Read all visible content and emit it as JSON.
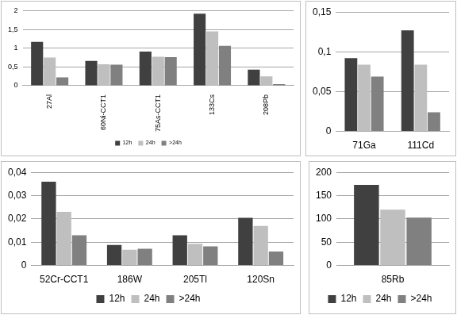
{
  "chart_data": [
    {
      "type": "bar",
      "categories": [
        "27Al",
        "60Ni-CCT1",
        "75As-CCT1",
        "133Cs",
        "208Pb"
      ],
      "series": [
        {
          "name": "12h",
          "color": "#404040",
          "values": [
            1.17,
            0.66,
            0.91,
            1.92,
            0.43
          ]
        },
        {
          "name": "24h",
          "color": "#bfbfbf",
          "values": [
            0.75,
            0.57,
            0.77,
            1.45,
            0.25
          ]
        },
        {
          "name": ">24h",
          "color": "#808080",
          "values": [
            0.22,
            0.56,
            0.76,
            1.06,
            0.04
          ]
        }
      ],
      "ylim": [
        0,
        2
      ],
      "yticks": [
        0,
        {
          "value": 0.5,
          "label": "0,5"
        },
        1,
        {
          "value": 1.5,
          "label": "1,5"
        },
        2
      ],
      "grid": true,
      "legend": "bottom"
    },
    {
      "type": "bar",
      "categories": [
        "71Ga",
        "111Cd"
      ],
      "series": [
        {
          "name": "12h",
          "color": "#404040",
          "values": [
            0.092,
            0.127
          ]
        },
        {
          "name": "24h",
          "color": "#bfbfbf",
          "values": [
            0.084,
            0.084
          ]
        },
        {
          "name": ">24h",
          "color": "#808080",
          "values": [
            0.069,
            0.024
          ]
        }
      ],
      "ylim": [
        0,
        0.15
      ],
      "yticks": [
        0,
        {
          "value": 0.05,
          "label": "0,05"
        },
        {
          "value": 0.1,
          "label": "0,1"
        },
        {
          "value": 0.15,
          "label": "0,15"
        }
      ],
      "grid": true
    },
    {
      "type": "bar",
      "categories": [
        "52Cr-CCT1",
        "186W",
        "205Tl",
        "120Sn"
      ],
      "series": [
        {
          "name": "12h",
          "color": "#404040",
          "values": [
            0.036,
            0.0088,
            0.013,
            0.0205
          ]
        },
        {
          "name": "24h",
          "color": "#bfbfbf",
          "values": [
            0.023,
            0.0068,
            0.0093,
            0.017
          ]
        },
        {
          "name": ">24h",
          "color": "#808080",
          "values": [
            0.013,
            0.0072,
            0.0082,
            0.006
          ]
        }
      ],
      "ylim": [
        0,
        0.04
      ],
      "yticks": [
        0,
        {
          "value": 0.01,
          "label": "0,01"
        },
        {
          "value": 0.02,
          "label": "0,02"
        },
        {
          "value": 0.03,
          "label": "0,03"
        },
        {
          "value": 0.04,
          "label": "0,04"
        }
      ],
      "grid": true,
      "legend": "bottom"
    },
    {
      "type": "bar",
      "categories": [
        "85Rb"
      ],
      "series": [
        {
          "name": "12h",
          "color": "#404040",
          "values": [
            173
          ]
        },
        {
          "name": "24h",
          "color": "#bfbfbf",
          "values": [
            120
          ]
        },
        {
          "name": ">24h",
          "color": "#808080",
          "values": [
            103
          ]
        }
      ],
      "ylim": [
        0,
        200
      ],
      "yticks": [
        0,
        50,
        100,
        150,
        200
      ],
      "grid": true,
      "legend": "bottom"
    }
  ]
}
